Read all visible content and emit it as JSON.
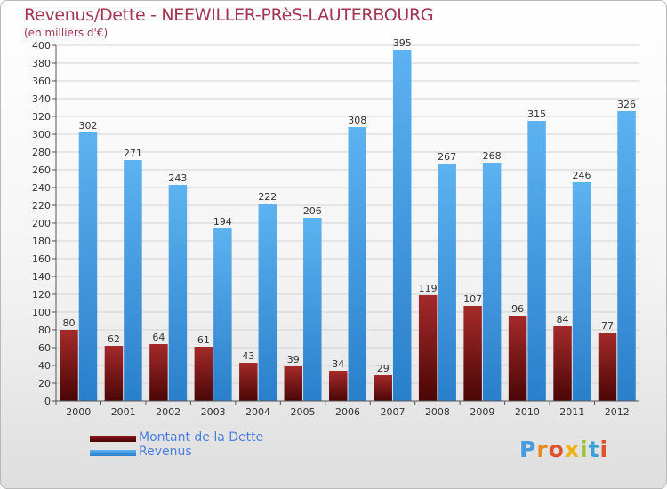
{
  "header": {
    "title": "Revenus/Dette - NEEWILLER-PRèS-LAUTERBOURG",
    "subtitle": "(en milliers d'€)"
  },
  "legend": {
    "dette_label": "Montant de la Dette",
    "revenus_label": "Revenus"
  },
  "logo": {
    "text": "Proxiti"
  },
  "colors": {
    "dette": "#6e0f0f",
    "revenus": "#3d9ae3",
    "title": "#a3334f",
    "grid": "#d0d0d0"
  },
  "chart_data": {
    "type": "bar",
    "title": "Revenus/Dette - NEEWILLER-PRèS-LAUTERBOURG",
    "ylabel": "(en milliers d'€)",
    "xlabel": "",
    "ylim": [
      0,
      400
    ],
    "yticks": [
      0,
      20,
      40,
      60,
      80,
      100,
      120,
      140,
      160,
      180,
      200,
      220,
      240,
      260,
      280,
      300,
      320,
      340,
      360,
      380,
      400
    ],
    "grid": true,
    "legend_position": "bottom-left",
    "categories": [
      "2000",
      "2001",
      "2002",
      "2003",
      "2004",
      "2005",
      "2006",
      "2007",
      "2008",
      "2009",
      "2010",
      "2011",
      "2012"
    ],
    "series": [
      {
        "name": "Montant de la Dette",
        "values": [
          80,
          62,
          64,
          61,
          43,
          39,
          34,
          29,
          119,
          107,
          96,
          84,
          77
        ]
      },
      {
        "name": "Revenus",
        "values": [
          302,
          271,
          243,
          194,
          222,
          206,
          308,
          395,
          267,
          268,
          315,
          246,
          326
        ]
      }
    ]
  }
}
